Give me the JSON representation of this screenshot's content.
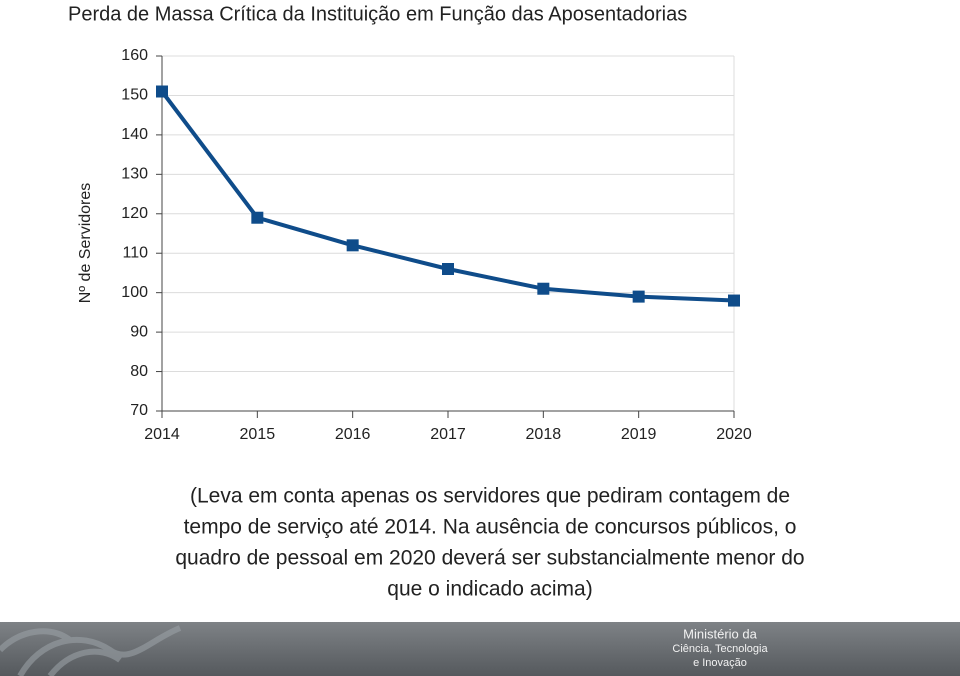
{
  "chart_data": {
    "type": "line",
    "title": "Perda de Massa Crítica da Instituição em Função das Aposentadorias",
    "y_label": "Nº de Servidores",
    "x": [
      2014,
      2015,
      2016,
      2017,
      2018,
      2019,
      2020
    ],
    "values": [
      151,
      119,
      112,
      106,
      101,
      99,
      98
    ],
    "color": "#0f4c8a",
    "xlim": [
      2014,
      2020
    ],
    "xticks": [
      2014,
      2015,
      2016,
      2017,
      2018,
      2019,
      2020
    ],
    "ylim": [
      70,
      160
    ],
    "yticks": [
      70,
      80,
      90,
      100,
      110,
      120,
      130,
      140,
      150,
      160
    ],
    "grid": true
  },
  "caption": [
    "(Leva em conta apenas os servidores que pediram contagem de",
    "tempo de serviço até 2014. Na ausência de concursos públicos, o",
    "quadro de pessoal em 2020 deverá ser substancialmente menor do",
    "que o indicado acima)"
  ],
  "footer": {
    "lines": [
      "Ministério da",
      "Ciência, Tecnologia",
      "e Inovação"
    ]
  }
}
